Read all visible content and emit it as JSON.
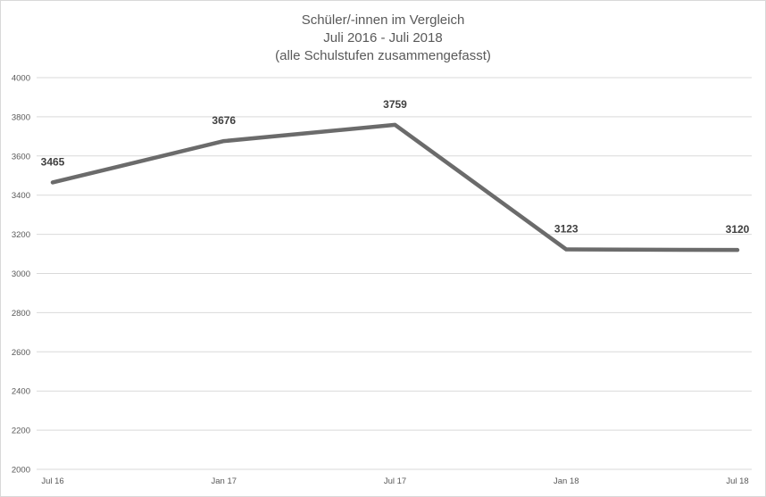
{
  "chart_data": {
    "type": "line",
    "title": "Schüler/-innen im Vergleich",
    "subtitle_lines": [
      "Juli 2016 - Juli 2018",
      "(alle Schulstufen zusammengefasst)"
    ],
    "xlabel": "",
    "ylabel": "",
    "categories": [
      "Jul 16",
      "Jan 17",
      "Jul 17",
      "Jan 18",
      "Jul 18"
    ],
    "series": [
      {
        "values": [
          3465,
          3676,
          3759,
          3123,
          3120
        ]
      }
    ],
    "ylim": [
      2000,
      4000
    ],
    "yticks": [
      2000,
      2200,
      2400,
      2600,
      2800,
      3000,
      3200,
      3400,
      3600,
      3800,
      4000
    ],
    "grid": true,
    "legend": "none",
    "line_color": "#6b6b6b",
    "grid_color": "#d9d9d9"
  }
}
